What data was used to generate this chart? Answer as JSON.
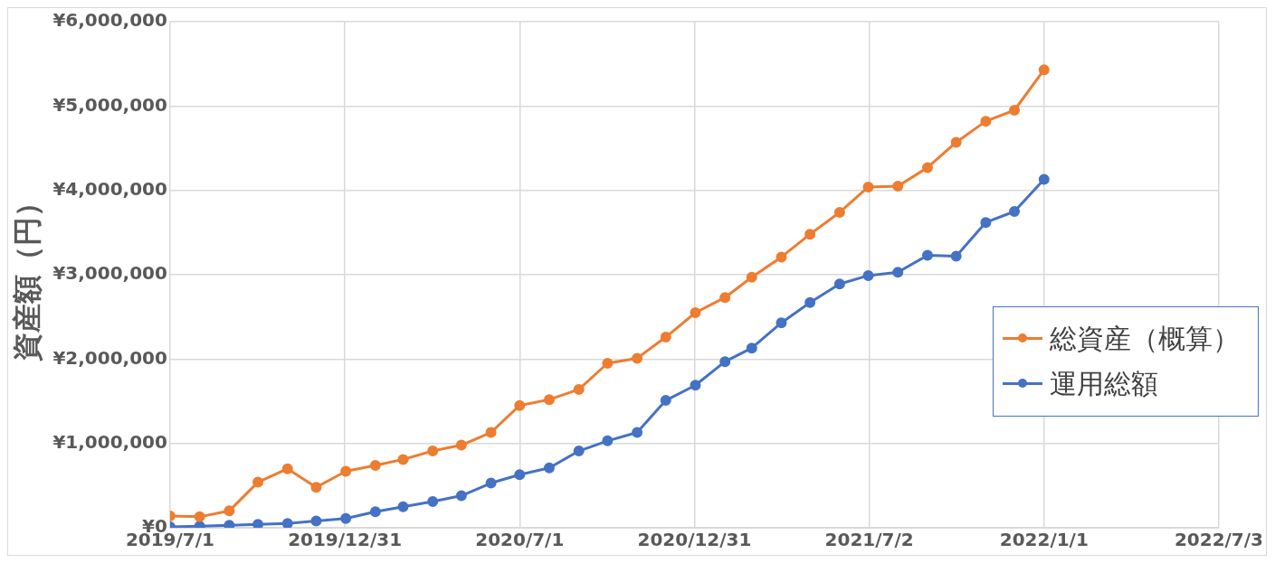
{
  "chart_data": {
    "type": "line",
    "ylabel": "資産額（円）",
    "x": [
      "2019-07-01",
      "2019-08-01",
      "2019-09-01",
      "2019-10-01",
      "2019-11-01",
      "2019-12-01",
      "2020-01-01",
      "2020-02-01",
      "2020-03-01",
      "2020-04-01",
      "2020-05-01",
      "2020-06-01",
      "2020-07-01",
      "2020-08-01",
      "2020-09-01",
      "2020-10-01",
      "2020-11-01",
      "2020-12-01",
      "2021-01-01",
      "2021-02-01",
      "2021-03-01",
      "2021-04-01",
      "2021-05-01",
      "2021-06-01",
      "2021-07-01",
      "2021-08-01",
      "2021-09-01",
      "2021-10-01",
      "2021-11-01",
      "2021-12-01",
      "2022-01-01"
    ],
    "series": [
      {
        "name": "総資産（概算）",
        "color": "#ed7d31",
        "values": [
          140000,
          130000,
          200000,
          540000,
          700000,
          480000,
          670000,
          740000,
          810000,
          910000,
          980000,
          1130000,
          1450000,
          1520000,
          1640000,
          1950000,
          2010000,
          2260000,
          2550000,
          2730000,
          2970000,
          3210000,
          3480000,
          3740000,
          4040000,
          4050000,
          4270000,
          4570000,
          4820000,
          4950000,
          5430000
        ]
      },
      {
        "name": "運用総額",
        "color": "#4472c4",
        "values": [
          10000,
          20000,
          30000,
          40000,
          50000,
          80000,
          110000,
          190000,
          250000,
          310000,
          380000,
          530000,
          630000,
          710000,
          910000,
          1030000,
          1130000,
          1510000,
          1690000,
          1970000,
          2130000,
          2430000,
          2670000,
          2890000,
          2990000,
          3030000,
          3230000,
          3220000,
          3620000,
          3750000,
          4130000
        ]
      }
    ],
    "xlim": [
      "2019-07-01",
      "2022-07-03"
    ],
    "xticks": [
      {
        "value": "2019-07-01",
        "label": "2019/7/1"
      },
      {
        "value": "2019-12-31",
        "label": "2019/12/31"
      },
      {
        "value": "2020-07-01",
        "label": "2020/7/1"
      },
      {
        "value": "2020-12-31",
        "label": "2020/12/31"
      },
      {
        "value": "2021-07-02",
        "label": "2021/7/2"
      },
      {
        "value": "2022-01-01",
        "label": "2022/1/1"
      },
      {
        "value": "2022-07-03",
        "label": "2022/7/3"
      }
    ],
    "ylim": [
      0,
      6000000
    ],
    "yticks": [
      {
        "value": 0,
        "label": "¥0"
      },
      {
        "value": 1000000,
        "label": "¥1,000,000"
      },
      {
        "value": 2000000,
        "label": "¥2,000,000"
      },
      {
        "value": 3000000,
        "label": "¥3,000,000"
      },
      {
        "value": 4000000,
        "label": "¥4,000,000"
      },
      {
        "value": 5000000,
        "label": "¥5,000,000"
      },
      {
        "value": 6000000,
        "label": "¥6,000,000"
      }
    ],
    "grid": true,
    "legend": "right",
    "marker": "circle",
    "line_style": "solid"
  }
}
